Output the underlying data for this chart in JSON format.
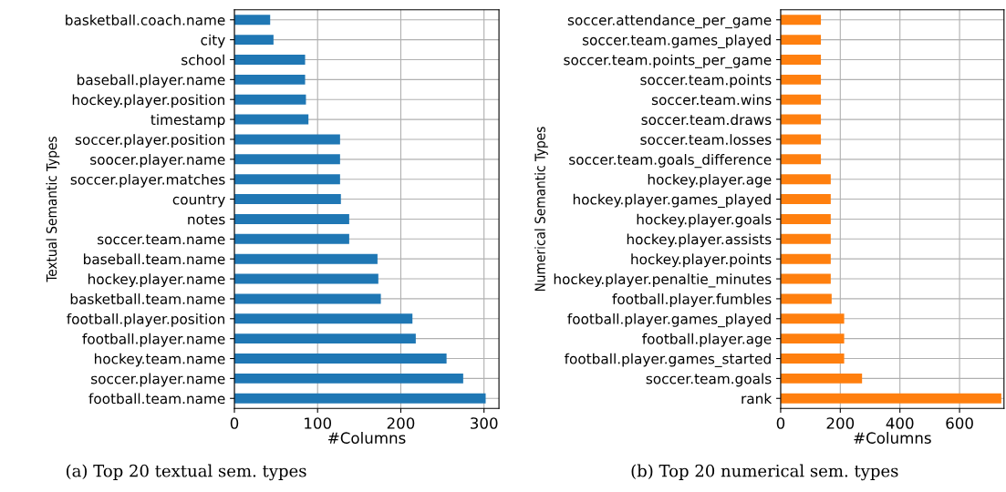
{
  "chart_data": [
    {
      "type": "bar",
      "orientation": "horizontal",
      "title": "(a) Top 20 textual sem. types",
      "xlabel": "#Columns",
      "ylabel": "Textual Semantic Types",
      "color": "#1f77b4",
      "grid": true,
      "categories": [
        "basketball.coach.name",
        "city",
        "school",
        "baseball.player.name",
        "hockey.player.position",
        "timestamp",
        "soccer.player.position",
        "soocer.player.name",
        "soccer.player.matches",
        "country",
        "notes",
        "soccer.team.name",
        "baseball.team.name",
        "hockey.player.name",
        "basketball.team.name",
        "football.player.position",
        "football.player.name",
        "hockey.team.name",
        "soccer.player.name",
        "football.team.name"
      ],
      "values": [
        43,
        47,
        85,
        85,
        86,
        89,
        127,
        127,
        127,
        128,
        138,
        138,
        172,
        173,
        176,
        214,
        218,
        255,
        275,
        302
      ],
      "xlim": [
        0,
        318
      ],
      "xticks": [
        0,
        100,
        200,
        300
      ]
    },
    {
      "type": "bar",
      "orientation": "horizontal",
      "title": "(b) Top 20 numerical sem. types",
      "xlabel": "#Columns",
      "ylabel": "Numerical Semantic Types",
      "color": "#ff7f0e",
      "grid": true,
      "categories": [
        "soccer.attendance_per_game",
        "soccer.team.games_played",
        "soccer.team.points_per_game",
        "soccer.team.points",
        "soccer.team.wins",
        "soccer.team.draws",
        "soccer.team.losses",
        "soccer.team.goals_difference",
        "hockey.player.age",
        "hockey.player.games_played",
        "hockey.player.goals",
        "hockey.player.assists",
        "hockey.player.points",
        "hockey.player.penaltie_minutes",
        "football.player.fumbles",
        "football.player.games_played",
        "football.player.age",
        "football.player.games_started",
        "soccer.team.goals",
        "rank"
      ],
      "values": [
        135,
        135,
        135,
        135,
        135,
        135,
        135,
        135,
        168,
        168,
        168,
        168,
        168,
        168,
        171,
        213,
        213,
        213,
        273,
        740
      ],
      "xlim": [
        0,
        749
      ],
      "xticks": [
        0,
        200,
        400,
        600
      ]
    }
  ]
}
